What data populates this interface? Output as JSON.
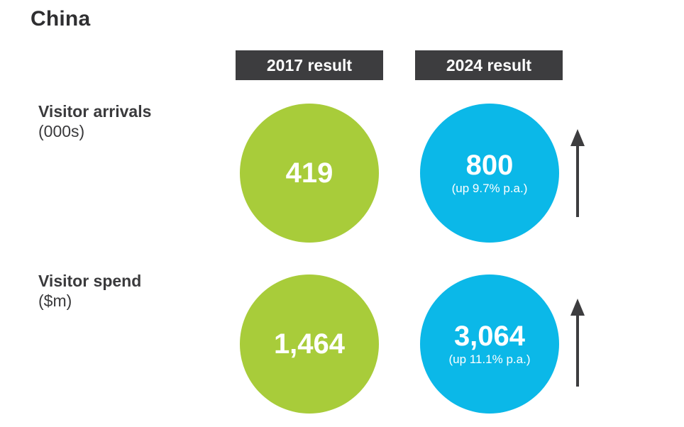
{
  "title": "China",
  "headers": {
    "col_2017": "2017 result",
    "col_2024": "2024 result"
  },
  "rows": [
    {
      "label": "Visitor arrivals",
      "unit": "(000s)",
      "value_2017": "419",
      "value_2024": "800",
      "growth_2024": "(up 9.7% p.a.)"
    },
    {
      "label": "Visitor spend",
      "unit": "($m)",
      "value_2017": "1,464",
      "value_2024": "3,064",
      "growth_2024": "(up 11.1% p.a.)"
    }
  ],
  "colors": {
    "green": "#a8cc3a",
    "blue": "#0bb8e8",
    "header_bg": "#3d3d3f",
    "arrow": "#3d3d3f"
  },
  "icons": {
    "growth_arrow": "arrow-up-icon"
  }
}
